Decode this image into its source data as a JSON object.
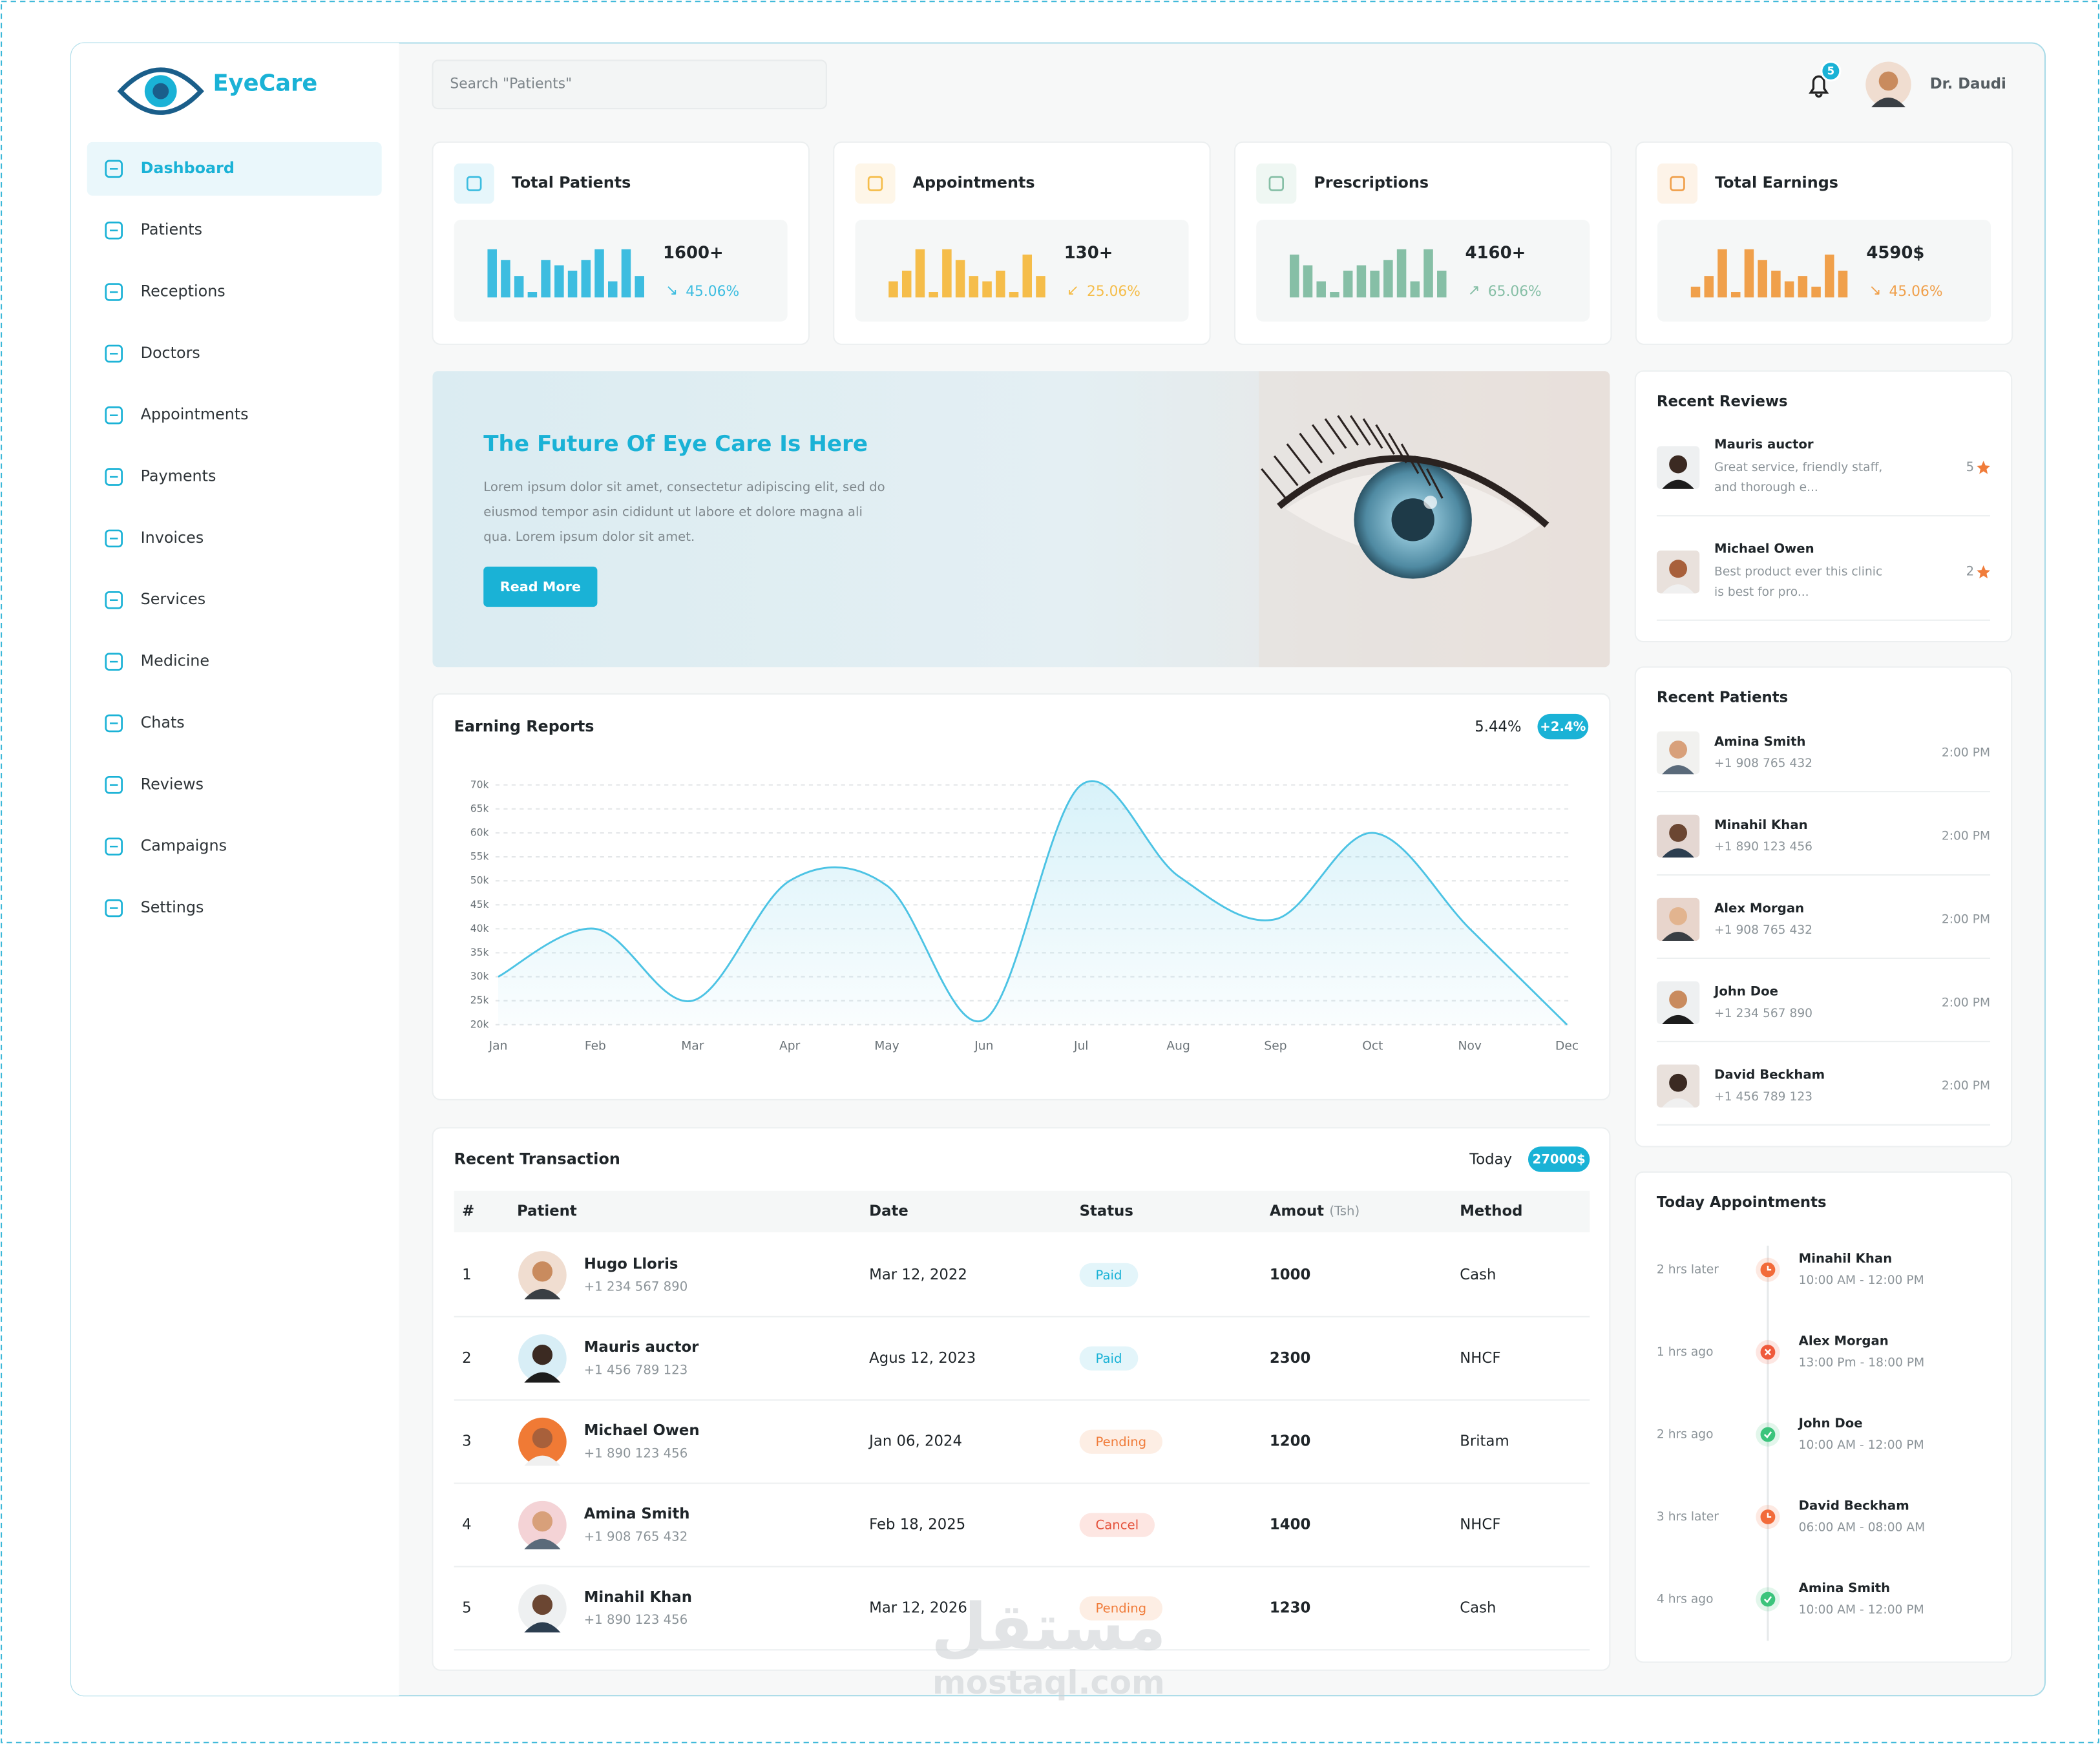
{
  "brand": {
    "name": "EyeCare"
  },
  "search_placeholder": "Search \"Patients\"",
  "notifications": 5,
  "user": "Dr. Daudi",
  "nav": [
    "Dashboard",
    "Patients",
    "Receptions",
    "Doctors",
    "Appointments",
    "Payments",
    "Invoices",
    "Services",
    "Medicine",
    "Chats",
    "Reviews",
    "Campaigns",
    "Settings"
  ],
  "nav_active": 0,
  "stats": [
    {
      "title": "Total Patients",
      "value": "1600+",
      "arrow": "↘",
      "change": "45.06%",
      "color": "#3dbde0",
      "spark": [
        9,
        7,
        4,
        1,
        7,
        6,
        5,
        7,
        9,
        3,
        9,
        4
      ]
    },
    {
      "title": "Appointments",
      "value": "130+",
      "arrow": "↙",
      "change": "25.06%",
      "color": "#f5bd4a",
      "spark": [
        3,
        5,
        9,
        1,
        9,
        7,
        4,
        3,
        5,
        1,
        8,
        4
      ]
    },
    {
      "title": "Prescriptions",
      "value": "4160+",
      "arrow": "↗",
      "change": "65.06%",
      "color": "#86bfa6",
      "spark": [
        8,
        6,
        3,
        1,
        5,
        6,
        5,
        7,
        9,
        3,
        9,
        5
      ]
    },
    {
      "title": "Total Earnings",
      "value": "4590$",
      "arrow": "↘",
      "change": "45.06%",
      "color": "#f0a04b",
      "spark": [
        2,
        4,
        9,
        1,
        9,
        7,
        5,
        3,
        4,
        2,
        8,
        5
      ]
    }
  ],
  "hero": {
    "title": "The Future Of Eye Care Is Here",
    "text": [
      "Lorem ipsum dolor sit amet, consectetur adipiscing elit, sed do",
      "eiusmod tempor asin cididunt ut labore et dolore magna ali",
      "qua. Lorem ipsum dolor sit amet."
    ],
    "button": "Read More"
  },
  "chart_data": {
    "type": "line",
    "title": "Earning Reports",
    "summary": "5.44%",
    "badge": "+2.4%",
    "color": "#4cc3e4",
    "categories": [
      "Jan",
      "Feb",
      "Mar",
      "Apr",
      "May",
      "Jun",
      "Jul",
      "Aug",
      "Sep",
      "Oct",
      "Nov",
      "Dec"
    ],
    "values": [
      30000,
      40000,
      25000,
      50000,
      49000,
      21000,
      70000,
      51000,
      42000,
      60000,
      40000,
      20000
    ],
    "ylim": [
      20000,
      70000
    ],
    "yticks": [
      {
        "value": 20000,
        "label": "20k"
      },
      {
        "value": 25000,
        "label": "25k"
      },
      {
        "value": 30000,
        "label": "30k"
      },
      {
        "value": 35000,
        "label": "35k"
      },
      {
        "value": 40000,
        "label": "40k"
      },
      {
        "value": 45000,
        "label": "45k"
      },
      {
        "value": 50000,
        "label": "50k"
      },
      {
        "value": 55000,
        "label": "55k"
      },
      {
        "value": 60000,
        "label": "60k"
      },
      {
        "value": 65000,
        "label": "65k"
      },
      {
        "value": 70000,
        "label": "70k"
      }
    ],
    "grid": true
  },
  "transactions": {
    "title": "Recent Transaction",
    "period": "Today",
    "total": "27000$",
    "columns": [
      "#",
      "Patient",
      "Date",
      "Status",
      "Amout",
      "Method"
    ],
    "amount_unit": "(Tsh)",
    "rows": [
      {
        "num": 1,
        "name": "Hugo Lloris",
        "phone": "+1 234 567 890",
        "date": "Mar 12, 2022",
        "status": "Paid",
        "amount": 1000,
        "method": "Cash"
      },
      {
        "num": 2,
        "name": "Mauris auctor",
        "phone": "+1 456 789 123",
        "date": "Agus 12, 2023",
        "status": "Paid",
        "amount": 2300,
        "method": "NHCF"
      },
      {
        "num": 3,
        "name": "Michael Owen",
        "phone": "+1 890 123 456",
        "date": "Jan 06, 2024",
        "status": "Pending",
        "amount": 1200,
        "method": "Britam"
      },
      {
        "num": 4,
        "name": "Amina Smith",
        "phone": "+1 908 765 432",
        "date": "Feb 18, 2025",
        "status": "Cancel",
        "amount": 1400,
        "method": "NHCF"
      },
      {
        "num": 5,
        "name": "Minahil Khan",
        "phone": "+1 890 123 456",
        "date": "Mar 12, 2026",
        "status": "Pending",
        "amount": 1230,
        "method": "Cash"
      }
    ]
  },
  "reviews": {
    "title": "Recent Reviews",
    "items": [
      {
        "name": "Mauris auctor",
        "text": [
          "Great service, friendly staff,",
          "and thorough e..."
        ],
        "rating": 5
      },
      {
        "name": "Michael Owen",
        "text": [
          "Best product ever this clinic",
          "is best for pro..."
        ],
        "rating": 2
      }
    ]
  },
  "recent_patients": {
    "title": "Recent Patients",
    "items": [
      {
        "name": "Amina Smith",
        "phone": "+1 908 765 432",
        "time": "2:00 PM"
      },
      {
        "name": "Minahil Khan",
        "phone": "+1 890 123 456",
        "time": "2:00 PM"
      },
      {
        "name": "Alex Morgan",
        "phone": "+1 908 765 432",
        "time": "2:00 PM"
      },
      {
        "name": "John Doe",
        "phone": "+1 234 567 890",
        "time": "2:00 PM"
      },
      {
        "name": "David Beckham",
        "phone": "+1 456 789 123",
        "time": "2:00 PM"
      }
    ]
  },
  "today_appointments": {
    "title": "Today Appointments",
    "items": [
      {
        "ago": "2 hrs later",
        "name": "Minahil Khan",
        "time": "10:00 AM - 12:00 PM",
        "status": "upcoming"
      },
      {
        "ago": "1 hrs ago",
        "name": "Alex Morgan",
        "time": "13:00 Pm - 18:00 PM",
        "status": "cancelled"
      },
      {
        "ago": "2 hrs ago",
        "name": "John Doe",
        "time": "10:00 AM - 12:00 PM",
        "status": "done"
      },
      {
        "ago": "3 hrs later",
        "name": "David Beckham",
        "time": "06:00 AM - 08:00 AM",
        "status": "upcoming"
      },
      {
        "ago": "4 hrs ago",
        "name": "Amina Smith",
        "time": "10:00 AM - 12:00 PM",
        "status": "done"
      }
    ]
  },
  "watermark": {
    "arabic": "مستقل",
    "latin": "mostaql.com"
  }
}
